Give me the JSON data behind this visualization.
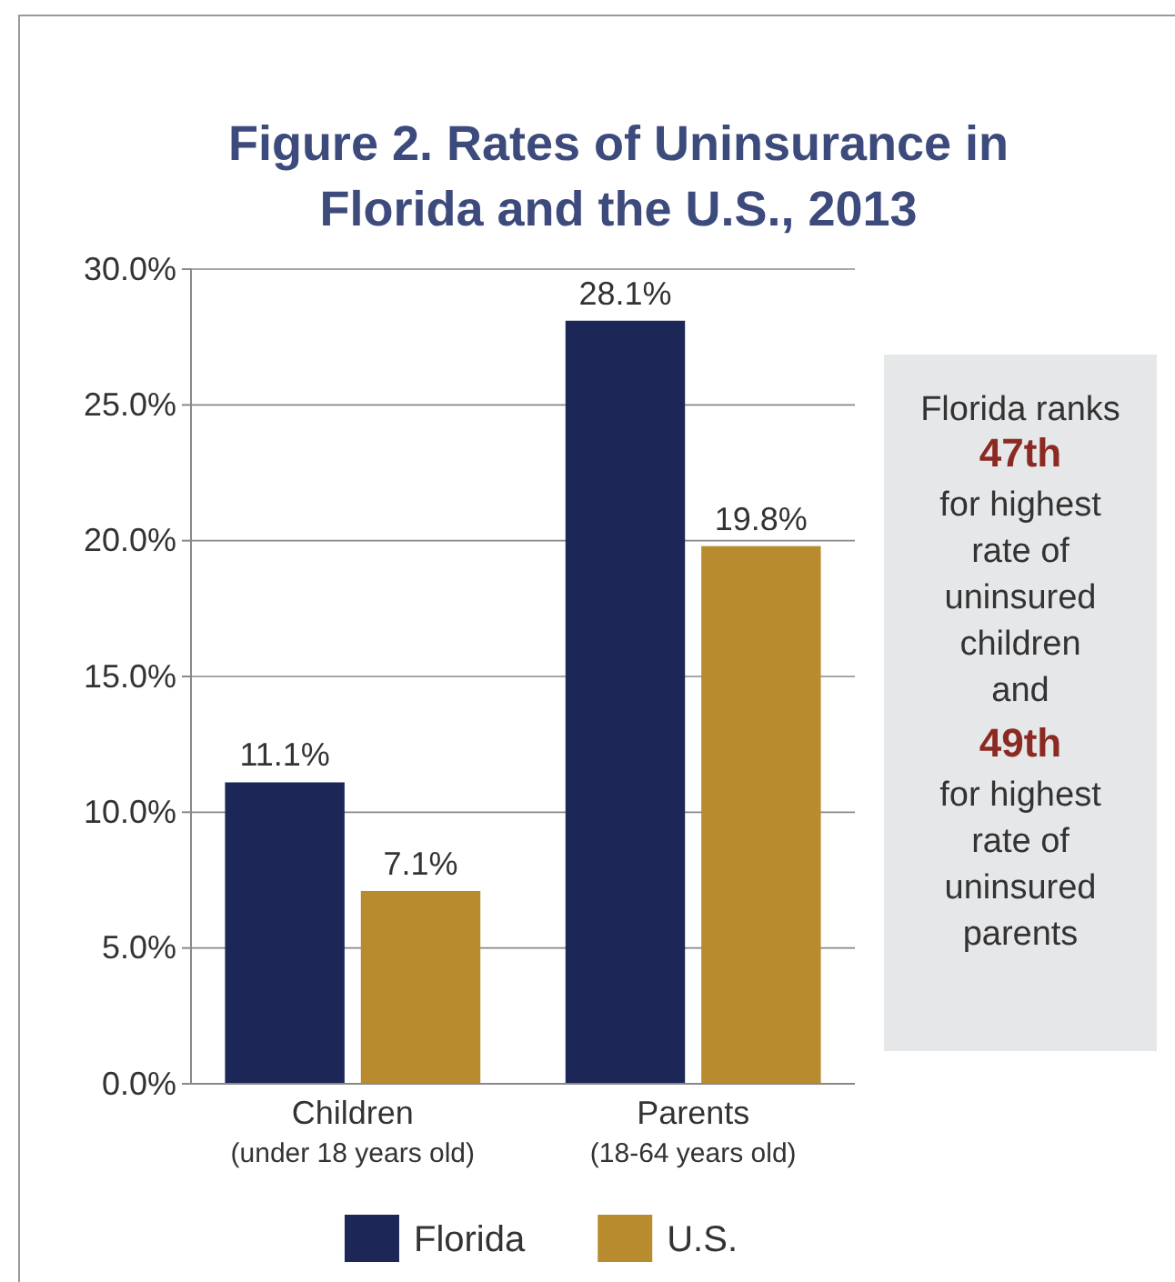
{
  "chart_data": {
    "type": "bar",
    "title": "Figure 2. Rates of Uninsurance in Florida and the U.S., 2013",
    "categories": [
      "Children\n(under 18 years old)",
      "Parents\n(18-64 years old)"
    ],
    "series": [
      {
        "name": "Florida",
        "color": "#1c2758",
        "values": [
          11.1,
          28.1
        ],
        "value_labels": [
          "11.1%",
          "28.1%"
        ]
      },
      {
        "name": "U.S.",
        "color": "#b98b2f",
        "values": [
          7.1,
          19.8
        ],
        "value_labels": [
          "7.1%",
          "19.8%"
        ]
      }
    ],
    "ylim": [
      0,
      30
    ],
    "yticks": [
      {
        "value": 0,
        "label": "0.0%"
      },
      {
        "value": 5,
        "label": "5.0%"
      },
      {
        "value": 10,
        "label": "10.0%"
      },
      {
        "value": 15,
        "label": "15.0%"
      },
      {
        "value": 20,
        "label": "20.0%"
      },
      {
        "value": 25,
        "label": "25.0%"
      },
      {
        "value": 30,
        "label": "30.0%"
      }
    ],
    "grid": "y",
    "legend": "bottom",
    "annotations": [
      "Florida ranks",
      "47th",
      "for highest rate of uninsured children",
      "and",
      "49th",
      "for highest rate of uninsured parents"
    ]
  }
}
